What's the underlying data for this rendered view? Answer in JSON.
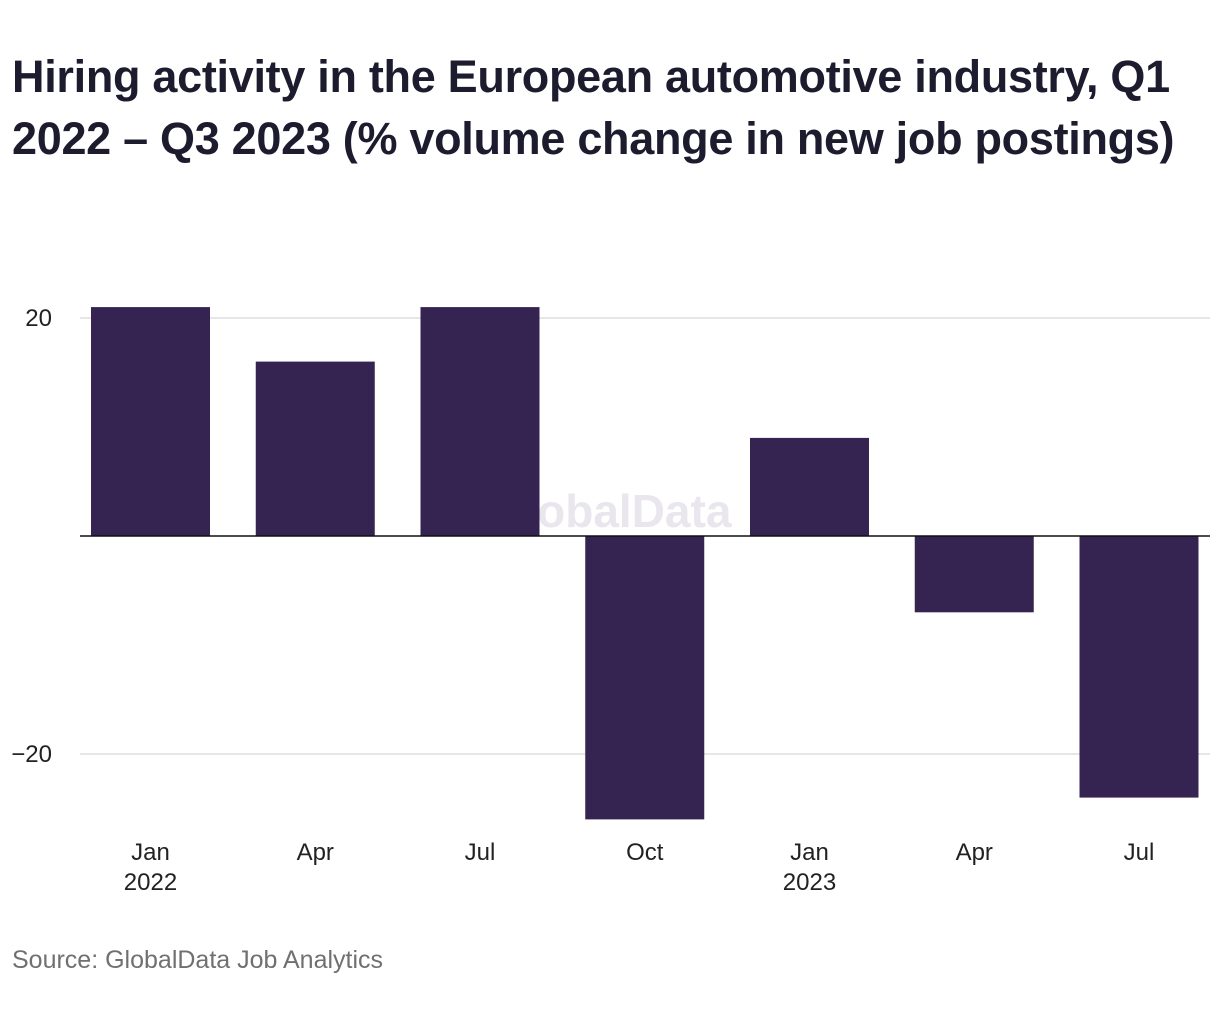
{
  "chart_data": {
    "type": "bar",
    "title": "Hiring activity in the European automotive industry, Q1 2022 – Q3 2023 (% volume change in new job postings)",
    "categories": [
      "Jan 2022",
      "Apr 2022",
      "Jul 2022",
      "Oct 2022",
      "Jan 2023",
      "Apr 2023",
      "Jul 2023"
    ],
    "x_tick_labels": [
      {
        "month": "Jan",
        "year": "2022"
      },
      {
        "month": "Apr",
        "year": ""
      },
      {
        "month": "Jul",
        "year": ""
      },
      {
        "month": "Oct",
        "year": ""
      },
      {
        "month": "Jan",
        "year": "2023"
      },
      {
        "month": "Apr",
        "year": ""
      },
      {
        "month": "Jul",
        "year": ""
      }
    ],
    "values": [
      21,
      16,
      21,
      -26,
      9,
      -7,
      -24
    ],
    "y_ticks": [
      20,
      -20
    ],
    "y_tick_labels": [
      "20",
      "−20"
    ],
    "ylim": [
      -26,
      21
    ],
    "grid": true,
    "bar_color": "#352452",
    "watermark": "GlobalData",
    "xlabel": "",
    "ylabel": ""
  },
  "source": "Source: GlobalData Job Analytics"
}
